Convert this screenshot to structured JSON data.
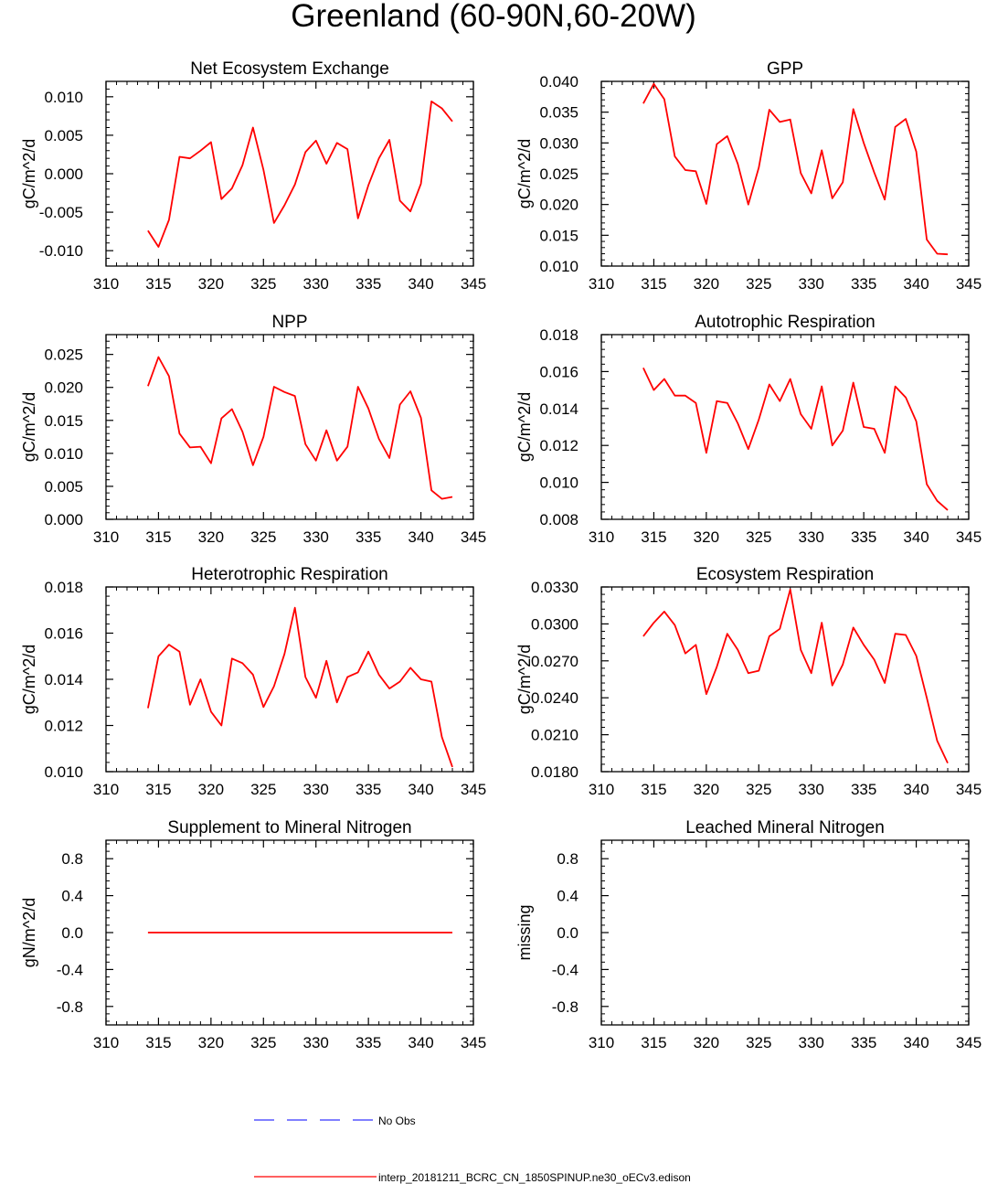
{
  "title": "Greenland (60-90N,60-20W)",
  "colors": {
    "model": "#ff0000",
    "obs": "#0000ff",
    "axis": "#000000"
  },
  "legend": {
    "obs_label": "No Obs",
    "model_label": "interp_20181211_BCRC_CN_1850SPINUP.ne30_oECv3.edison"
  },
  "chart_data": [
    {
      "type": "line",
      "title": "Net Ecosystem Exchange",
      "ylabel": "gC/m^2/d",
      "xlim": [
        310,
        345
      ],
      "xticks": [
        310,
        315,
        320,
        325,
        330,
        335,
        340,
        345
      ],
      "ylim": [
        -0.012,
        0.012
      ],
      "yticks": [
        "-0.010",
        "-0.005",
        "0.000",
        "0.005",
        "0.010"
      ],
      "series": [
        {
          "x": [
            314,
            315,
            316,
            317,
            318,
            319,
            320,
            321,
            322,
            323,
            324,
            325,
            326,
            327,
            328,
            329,
            330,
            331,
            332,
            333,
            334,
            335,
            336,
            337,
            338,
            339,
            340,
            341,
            342,
            343
          ],
          "values": [
            -0.0074,
            -0.0095,
            -0.006,
            0.0022,
            0.002,
            0.003,
            0.0041,
            -0.0033,
            -0.0019,
            0.0011,
            0.006,
            0.0005,
            -0.0064,
            -0.0041,
            -0.0014,
            0.0028,
            0.0043,
            0.0013,
            0.004,
            0.0032,
            -0.0058,
            -0.0015,
            0.002,
            0.0044,
            -0.0035,
            -0.0049,
            -0.0013,
            0.0094,
            0.0085,
            0.0068
          ]
        }
      ]
    },
    {
      "type": "line",
      "title": "GPP",
      "ylabel": "gC/m^2/d",
      "xlim": [
        310,
        345
      ],
      "xticks": [
        310,
        315,
        320,
        325,
        330,
        335,
        340,
        345
      ],
      "ylim": [
        0.01,
        0.04
      ],
      "yticks": [
        "0.010",
        "0.015",
        "0.020",
        "0.025",
        "0.030",
        "0.035",
        "0.040"
      ],
      "series": [
        {
          "x": [
            314,
            315,
            316,
            317,
            318,
            319,
            320,
            321,
            322,
            323,
            324,
            325,
            326,
            327,
            328,
            329,
            330,
            331,
            332,
            333,
            334,
            335,
            336,
            337,
            338,
            339,
            340,
            341,
            342,
            343
          ],
          "values": [
            0.0364,
            0.0396,
            0.0371,
            0.0278,
            0.0256,
            0.0254,
            0.0201,
            0.0298,
            0.0311,
            0.0266,
            0.02,
            0.026,
            0.0354,
            0.0334,
            0.0338,
            0.0251,
            0.0218,
            0.0288,
            0.021,
            0.0236,
            0.0355,
            0.03,
            0.0252,
            0.0208,
            0.0326,
            0.0339,
            0.0286,
            0.0143,
            0.012,
            0.0119
          ]
        }
      ]
    },
    {
      "type": "line",
      "title": "NPP",
      "ylabel": "gC/m^2/d",
      "xlim": [
        310,
        345
      ],
      "xticks": [
        310,
        315,
        320,
        325,
        330,
        335,
        340,
        345
      ],
      "ylim": [
        0.0,
        0.028
      ],
      "yticks": [
        "0.000",
        "0.005",
        "0.010",
        "0.015",
        "0.020",
        "0.025"
      ],
      "series": [
        {
          "x": [
            314,
            315,
            316,
            317,
            318,
            319,
            320,
            321,
            322,
            323,
            324,
            325,
            326,
            327,
            328,
            329,
            330,
            331,
            332,
            333,
            334,
            335,
            336,
            337,
            338,
            339,
            340,
            341,
            342,
            343
          ],
          "values": [
            0.0202,
            0.0246,
            0.0217,
            0.013,
            0.0109,
            0.011,
            0.0085,
            0.0153,
            0.0167,
            0.0133,
            0.0082,
            0.0125,
            0.0201,
            0.0193,
            0.0187,
            0.0114,
            0.0089,
            0.0135,
            0.0089,
            0.011,
            0.0201,
            0.0168,
            0.0122,
            0.0093,
            0.0174,
            0.0194,
            0.0154,
            0.0044,
            0.0031,
            0.0034
          ]
        }
      ]
    },
    {
      "type": "line",
      "title": "Autotrophic Respiration",
      "ylabel": "gC/m^2/d",
      "xlim": [
        310,
        345
      ],
      "xticks": [
        310,
        315,
        320,
        325,
        330,
        335,
        340,
        345
      ],
      "ylim": [
        0.008,
        0.018
      ],
      "yticks": [
        "0.008",
        "0.010",
        "0.012",
        "0.014",
        "0.016",
        "0.018"
      ],
      "series": [
        {
          "x": [
            314,
            315,
            316,
            317,
            318,
            319,
            320,
            321,
            322,
            323,
            324,
            325,
            326,
            327,
            328,
            329,
            330,
            331,
            332,
            333,
            334,
            335,
            336,
            337,
            338,
            339,
            340,
            341,
            342,
            343
          ],
          "values": [
            0.0162,
            0.015,
            0.0156,
            0.0147,
            0.0147,
            0.0143,
            0.0116,
            0.0144,
            0.0143,
            0.0132,
            0.0118,
            0.0134,
            0.0153,
            0.0144,
            0.0156,
            0.0137,
            0.0129,
            0.0152,
            0.012,
            0.0128,
            0.0154,
            0.013,
            0.0129,
            0.0116,
            0.0152,
            0.0146,
            0.0133,
            0.0099,
            0.009,
            0.0085
          ]
        }
      ]
    },
    {
      "type": "line",
      "title": "Heterotrophic Respiration",
      "ylabel": "gC/m^2/d",
      "xlim": [
        310,
        345
      ],
      "xticks": [
        310,
        315,
        320,
        325,
        330,
        335,
        340,
        345
      ],
      "ylim": [
        0.01,
        0.018
      ],
      "yticks": [
        "0.010",
        "0.012",
        "0.014",
        "0.016",
        "0.018"
      ],
      "series": [
        {
          "x": [
            314,
            315,
            316,
            317,
            318,
            319,
            320,
            321,
            322,
            323,
            324,
            325,
            326,
            327,
            328,
            329,
            330,
            331,
            332,
            333,
            334,
            335,
            336,
            337,
            338,
            339,
            340,
            341,
            342,
            343
          ],
          "values": [
            0.01275,
            0.015,
            0.0155,
            0.0152,
            0.0129,
            0.014,
            0.0126,
            0.012,
            0.0149,
            0.0147,
            0.0142,
            0.0128,
            0.0137,
            0.0151,
            0.0171,
            0.0141,
            0.0132,
            0.0148,
            0.013,
            0.0141,
            0.0143,
            0.0152,
            0.0142,
            0.0136,
            0.0139,
            0.0145,
            0.014,
            0.0139,
            0.0115,
            0.0102
          ]
        }
      ]
    },
    {
      "type": "line",
      "title": "Ecosystem Respiration",
      "ylabel": "gC/m^2/d",
      "xlim": [
        310,
        345
      ],
      "xticks": [
        310,
        315,
        320,
        325,
        330,
        335,
        340,
        345
      ],
      "ylim": [
        0.018,
        0.033
      ],
      "yticks": [
        "0.0180",
        "0.0210",
        "0.0240",
        "0.0270",
        "0.0300",
        "0.0330"
      ],
      "series": [
        {
          "x": [
            314,
            315,
            316,
            317,
            318,
            319,
            320,
            321,
            322,
            323,
            324,
            325,
            326,
            327,
            328,
            329,
            330,
            331,
            332,
            333,
            334,
            335,
            336,
            337,
            338,
            339,
            340,
            341,
            342,
            343
          ],
          "values": [
            0.029,
            0.0301,
            0.031,
            0.0299,
            0.0276,
            0.0283,
            0.0243,
            0.0265,
            0.0292,
            0.0279,
            0.026,
            0.0262,
            0.029,
            0.0296,
            0.0328,
            0.0279,
            0.026,
            0.0301,
            0.025,
            0.0267,
            0.0297,
            0.0283,
            0.0271,
            0.0252,
            0.0292,
            0.0291,
            0.0274,
            0.024,
            0.0205,
            0.0187
          ]
        }
      ]
    },
    {
      "type": "line",
      "title": "Supplement to Mineral Nitrogen",
      "ylabel": "gN/m^2/d",
      "xlim": [
        310,
        345
      ],
      "xticks": [
        310,
        315,
        320,
        325,
        330,
        335,
        340,
        345
      ],
      "ylim": [
        -1.0,
        1.0
      ],
      "yticks": [
        "-0.8",
        "-0.4",
        "0.0",
        "0.4",
        "0.8"
      ],
      "series": [
        {
          "x": [
            314,
            343
          ],
          "values": [
            0.0,
            0.0
          ]
        }
      ]
    },
    {
      "type": "line",
      "title": "Leached Mineral Nitrogen",
      "ylabel": "missing",
      "xlim": [
        310,
        345
      ],
      "xticks": [
        310,
        315,
        320,
        325,
        330,
        335,
        340,
        345
      ],
      "ylim": [
        -1.0,
        1.0
      ],
      "yticks": [
        "-0.8",
        "-0.4",
        "0.0",
        "0.4",
        "0.8"
      ],
      "series": []
    }
  ]
}
